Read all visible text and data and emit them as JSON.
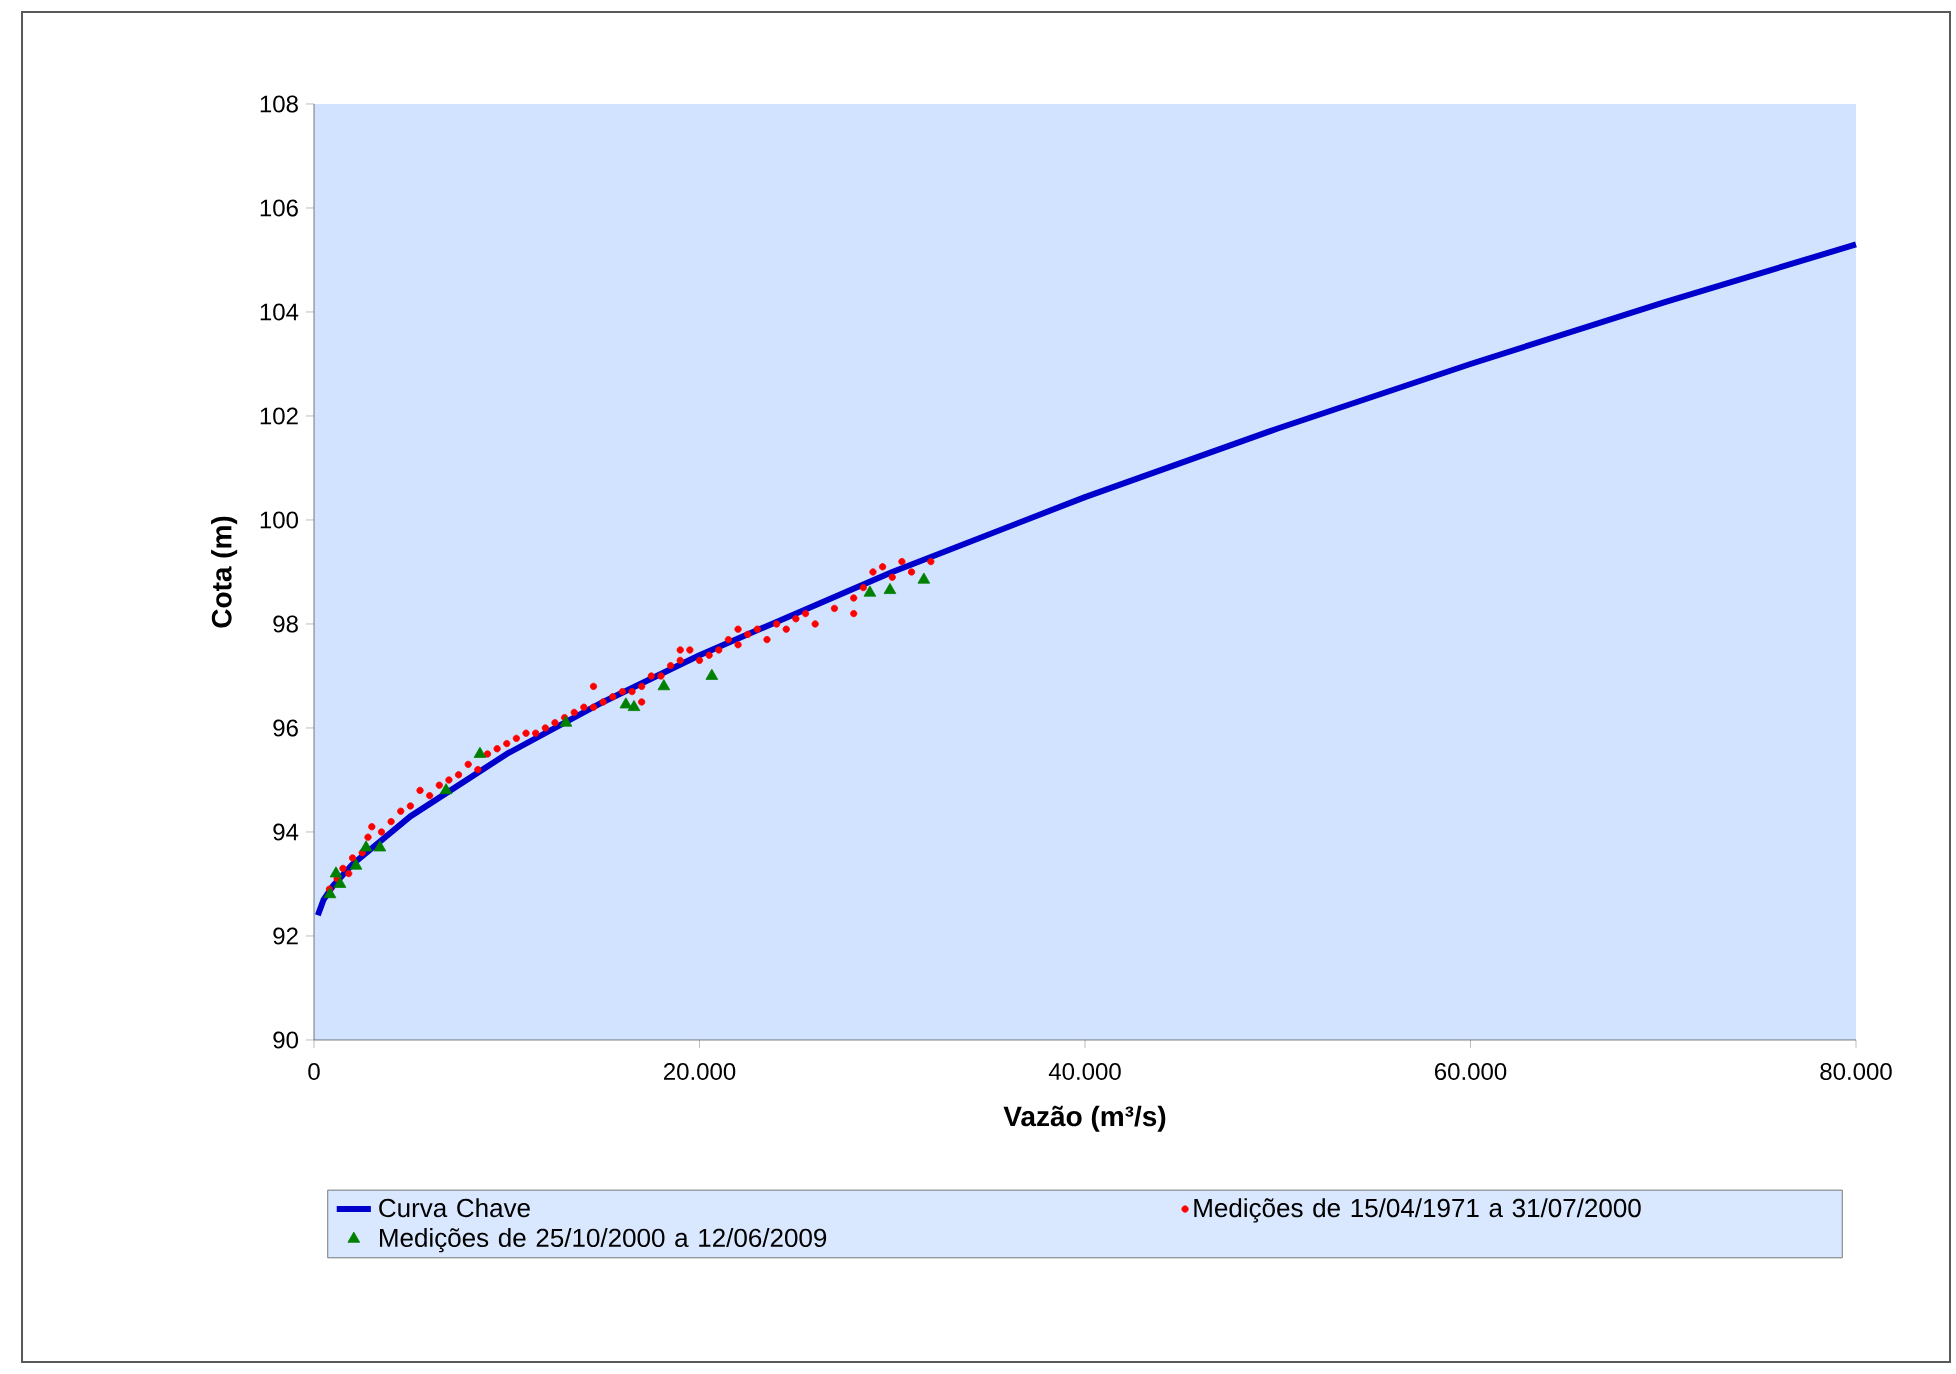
{
  "chart_data": {
    "type": "scatter",
    "xlabel": "Vazão (m³/s)",
    "ylabel": "Cota (m)",
    "xlim": [
      0,
      80000
    ],
    "ylim": [
      90,
      108
    ],
    "xticks": [
      0,
      {
        "value": 20000,
        "label": "20.000"
      },
      {
        "value": 40000,
        "label": "40.000"
      },
      {
        "value": 60000,
        "label": "60.000"
      },
      {
        "value": 80000,
        "label": "80.000"
      }
    ],
    "yticks": [
      90,
      92,
      94,
      96,
      98,
      100,
      102,
      104,
      106,
      108
    ],
    "legend": "bottom",
    "grid": false,
    "series": [
      {
        "name": "Curva Chave",
        "type": "line",
        "color": "#0000cc",
        "marker": "none",
        "line_style": "solid",
        "x": [
          200,
          500,
          1000,
          2000,
          5000,
          10000,
          15000,
          20000,
          30000,
          40000,
          50000,
          60000,
          70000,
          80000
        ],
        "values": [
          92.4,
          92.7,
          92.97,
          93.38,
          94.3,
          95.5,
          96.5,
          97.4,
          99.0,
          100.44,
          101.76,
          103.0,
          104.18,
          105.3
        ]
      },
      {
        "name": "Medições de 15/04/1971 a 31/07/2000",
        "color": "#ff0000",
        "marker": "circle",
        "x": [
          800,
          1200,
          1500,
          1800,
          2000,
          2500,
          2800,
          3000,
          3500,
          4000,
          4500,
          5000,
          5500,
          6000,
          6500,
          7000,
          7500,
          8000,
          8500,
          9000,
          9500,
          10000,
          10500,
          11000,
          11500,
          12000,
          12500,
          13000,
          13500,
          14000,
          14500,
          15000,
          15500,
          16000,
          16500,
          17000,
          17500,
          18000,
          18500,
          19000,
          19500,
          20000,
          20500,
          21000,
          21500,
          22000,
          22500,
          23000,
          23500,
          24000,
          24500,
          25000,
          25500,
          26000,
          27000,
          28000,
          28500,
          29000,
          29500,
          30000,
          30500,
          31000,
          32000,
          14500,
          19000,
          17000,
          22000,
          28000
        ],
        "values": [
          92.9,
          93.1,
          93.3,
          93.2,
          93.5,
          93.6,
          93.9,
          94.1,
          94.0,
          94.2,
          94.4,
          94.5,
          94.8,
          94.7,
          94.9,
          95.0,
          95.1,
          95.3,
          95.2,
          95.5,
          95.6,
          95.7,
          95.8,
          95.9,
          95.9,
          96.0,
          96.1,
          96.2,
          96.3,
          96.4,
          96.4,
          96.5,
          96.6,
          96.7,
          96.7,
          96.8,
          97.0,
          97.0,
          97.2,
          97.3,
          97.5,
          97.3,
          97.4,
          97.5,
          97.7,
          97.6,
          97.8,
          97.9,
          97.7,
          98.0,
          97.9,
          98.1,
          98.2,
          98.0,
          98.3,
          98.5,
          98.7,
          99.0,
          99.1,
          98.9,
          99.2,
          99.0,
          99.2,
          96.8,
          97.5,
          96.5,
          97.9,
          98.2
        ]
      },
      {
        "name": "Medições de 25/10/2000 a 12/06/2009",
        "color": "#008000",
        "marker": "triangle",
        "x": [
          830,
          1350,
          1140,
          2180,
          2700,
          3420,
          6850,
          8610,
          13070,
          16180,
          16600,
          18150,
          20640,
          28840,
          29880,
          31640
        ],
        "values": [
          92.8,
          93.0,
          93.2,
          93.35,
          93.7,
          93.7,
          94.8,
          95.5,
          96.1,
          96.45,
          96.4,
          96.8,
          97.0,
          98.6,
          98.65,
          98.85
        ]
      }
    ]
  }
}
